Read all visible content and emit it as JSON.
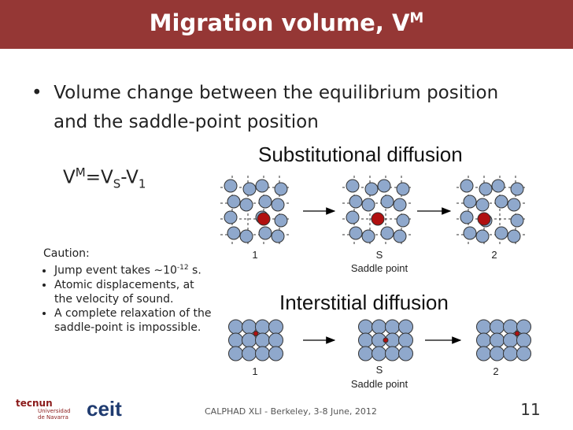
{
  "header": {
    "title": "Migration volume, V",
    "title_sup": "M"
  },
  "bullet": "Volume change between the equilibrium position and the saddle-point position",
  "formula": {
    "v1": "V",
    "sup": "M",
    "v2": "=V",
    "sub1": "S",
    "v3": "-V",
    "sub2": "1"
  },
  "caution": {
    "heading": "Caution:",
    "items": [
      {
        "text": "Jump event takes ∼10",
        "sup": "-12",
        "tail": " s."
      },
      {
        "text": "Atomic displacements, at the velocity of sound."
      },
      {
        "text": "A complete relaxation of the saddle-point is impossible."
      }
    ]
  },
  "substitutional": {
    "title": "Substitutional diffusion",
    "labels": [
      "1",
      "S",
      "2"
    ],
    "caption": "Saddle point"
  },
  "interstitial": {
    "title": "Interstitial diffusion",
    "labels": [
      "1",
      "S",
      "2"
    ],
    "caption": "Saddle point"
  },
  "footer": {
    "text": "CALPHAD XLI - Berkeley, 3-8 June, 2012",
    "page": "11"
  },
  "logos": {
    "tecnun": "tecnun",
    "university": "Universidad de Navarra",
    "ceit": "ceit"
  }
}
